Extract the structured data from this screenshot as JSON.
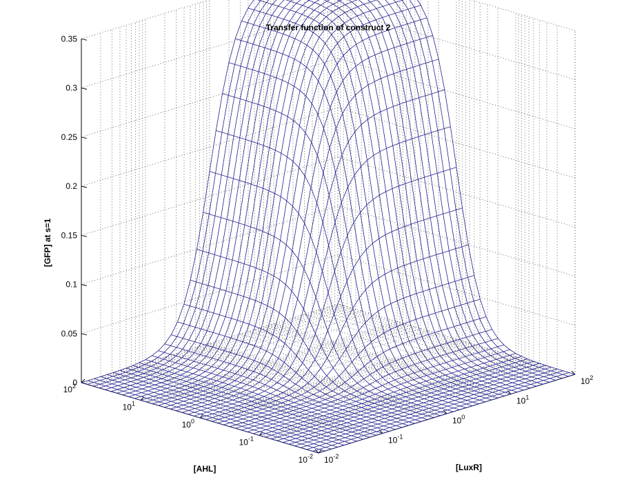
{
  "chart_data": {
    "type": "surface",
    "title": "Transfer function of construct 2",
    "zlabel": "[GFP]  at s=1",
    "xlabel": "[AHL]",
    "ylabel": "[LuxR]",
    "x_axis": {
      "scale": "log",
      "range": [
        0.01,
        100
      ],
      "ticks": [
        {
          "base": "10",
          "exp": "-2"
        },
        {
          "base": "10",
          "exp": "-1"
        },
        {
          "base": "10",
          "exp": "0"
        },
        {
          "base": "10",
          "exp": "1"
        },
        {
          "base": "10",
          "exp": "2"
        }
      ]
    },
    "y_axis": {
      "scale": "log",
      "range": [
        0.01,
        100
      ],
      "ticks": [
        {
          "base": "10",
          "exp": "-2"
        },
        {
          "base": "10",
          "exp": "-1"
        },
        {
          "base": "10",
          "exp": "0"
        },
        {
          "base": "10",
          "exp": "1"
        },
        {
          "base": "10",
          "exp": "2"
        }
      ]
    },
    "z_axis": {
      "range": [
        0,
        0.35
      ],
      "ticks": [
        "0",
        "0.05",
        "0.1",
        "0.15",
        "0.2",
        "0.25",
        "0.3",
        "0.35"
      ]
    },
    "grid": "dotted",
    "mesh_color": "#1f1f8f",
    "surface_model": "z = 0.35 * h(AHL) * h(LuxR), h(v) = v^2 / (v^2 + 1)",
    "max_value": 0.35,
    "half_max_concentration": 1
  }
}
